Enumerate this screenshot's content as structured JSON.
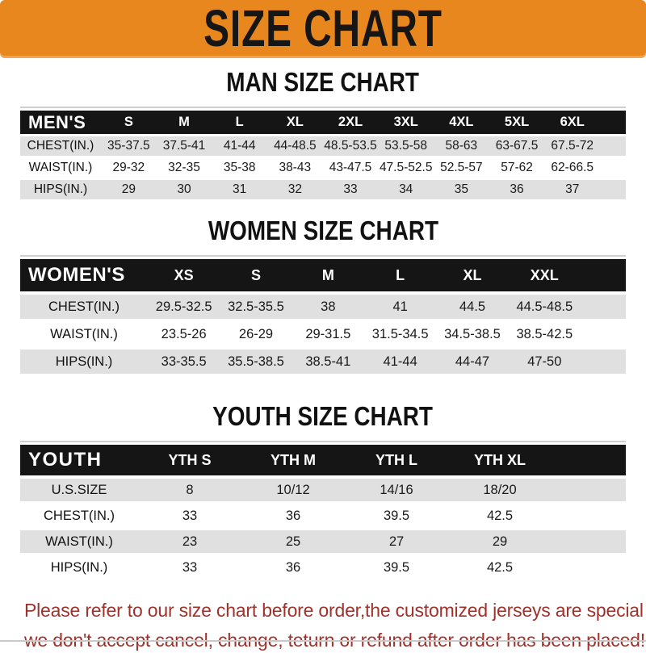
{
  "banner": {
    "title": "SIZE CHART"
  },
  "colors": {
    "banner_orange": "#E8871E",
    "header_bar_black": "#151515",
    "striped_row_gray": "#E0E0E0",
    "notice_red": "#A0322C"
  },
  "sections": [
    {
      "heading": "MAN SIZE CHART",
      "table": {
        "header_label": "MEN'S",
        "columns": [
          "S",
          "M",
          "L",
          "XL",
          "2XL",
          "3XL",
          "4XL",
          "5XL",
          "6XL"
        ],
        "rows": [
          {
            "label": "CHEST(IN.)",
            "values": [
              "35-37.5",
              "37.5-41",
              "41-44",
              "44-48.5",
              "48.5-53.5",
              "53.5-58",
              "58-63",
              "63-67.5",
              "67.5-72"
            ]
          },
          {
            "label": "WAIST(IN.)",
            "values": [
              "29-32",
              "32-35",
              "35-38",
              "38-43",
              "43-47.5",
              "47.5-52.5",
              "52.5-57",
              "57-62",
              "62-66.5"
            ]
          },
          {
            "label": "HIPS(IN.)",
            "values": [
              "29",
              "30",
              "31",
              "32",
              "33",
              "34",
              "35",
              "36",
              "37"
            ]
          }
        ]
      }
    },
    {
      "heading": "WOMEN SIZE CHART",
      "table": {
        "header_label": "WOMEN'S",
        "columns": [
          "XS",
          "S",
          "M",
          "L",
          "XL",
          "XXL"
        ],
        "rows": [
          {
            "label": "CHEST(IN.)",
            "values": [
              "29.5-32.5",
              "32.5-35.5",
              "38",
              "41",
              "44.5",
              "44.5-48.5"
            ]
          },
          {
            "label": "WAIST(IN.)",
            "values": [
              "23.5-26",
              "26-29",
              "29-31.5",
              "31.5-34.5",
              "34.5-38.5",
              "38.5-42.5"
            ]
          },
          {
            "label": "HIPS(IN.)",
            "values": [
              "33-35.5",
              "35.5-38.5",
              "38.5-41",
              "41-44",
              "44-47",
              "47-50"
            ]
          }
        ]
      }
    },
    {
      "heading": "YOUTH SIZE CHART",
      "table": {
        "header_label": "YOUTH",
        "columns": [
          "YTH S",
          "YTH M",
          "YTH L",
          "YTH XL"
        ],
        "rows": [
          {
            "label": "U.S.SIZE",
            "values": [
              "8",
              "10/12",
              "14/16",
              "18/20"
            ]
          },
          {
            "label": "CHEST(IN.)",
            "values": [
              "33",
              "36",
              "39.5",
              "42.5"
            ]
          },
          {
            "label": "WAIST(IN.)",
            "values": [
              "23",
              "25",
              "27",
              "29"
            ]
          },
          {
            "label": "HIPS(IN.)",
            "values": [
              "33",
              "36",
              "39.5",
              "42.5"
            ]
          }
        ]
      }
    }
  ],
  "footer": {
    "line1": "Please refer to our size chart before order,the customized jerseys are special products,",
    "line2": "we don't accept cancel, change, teturn or refund after order has been placed!"
  }
}
